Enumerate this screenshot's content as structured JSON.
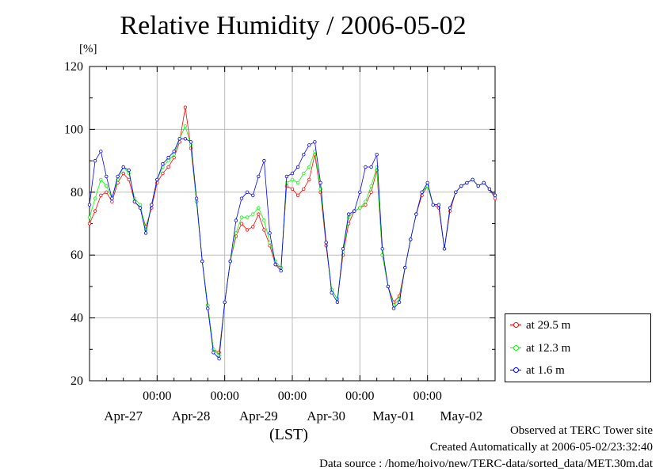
{
  "title": "Relative Humidity / 2006-05-02",
  "y_unit": "[%]",
  "x_unit": "(LST)",
  "footer": {
    "line1": "Observed at TERC Tower site",
    "line2": "Created Automatically at 2006-05-02/23:32:40",
    "line3": "Data source : /home/hoivo/new/TERC-data/sorted_data/MET.30m.dat"
  },
  "legend": {
    "s1": "at 29.5 m",
    "s2": "at 12.3 m",
    "s3": "at 1.6 m"
  },
  "chart_data": {
    "type": "line",
    "title": "Relative Humidity / 2006-05-02",
    "ylabel": "[%]",
    "xlabel": "(LST)",
    "ylim": [
      20,
      120
    ],
    "yticks": [
      20,
      40,
      60,
      80,
      100,
      120
    ],
    "xlim_days": [
      0,
      6
    ],
    "x_time_ticks": [
      "00:00",
      "00:00",
      "00:00",
      "00:00",
      "00:00"
    ],
    "x_date_labels": [
      "Apr-27",
      "Apr-28",
      "Apr-29",
      "Apr-30",
      "May-01",
      "May-02"
    ],
    "grid": true,
    "legend_position": "right-bottom",
    "series": [
      {
        "name": "at 29.5 m",
        "color": "#ff0000",
        "x": [
          0,
          0.083,
          0.167,
          0.25,
          0.333,
          0.417,
          0.5,
          0.583,
          0.667,
          0.75,
          0.833,
          0.917,
          1,
          1.083,
          1.167,
          1.25,
          1.333,
          1.417,
          1.5,
          1.583,
          1.667,
          1.75,
          1.833,
          1.917,
          2,
          2.083,
          2.167,
          2.25,
          2.333,
          2.417,
          2.5,
          2.583,
          2.667,
          2.75,
          2.833,
          2.917,
          3,
          3.083,
          3.167,
          3.25,
          3.333,
          3.417,
          3.5,
          3.583,
          3.667,
          3.75,
          3.833,
          3.917,
          4,
          4.083,
          4.167,
          4.25,
          4.333,
          4.417,
          4.5,
          4.583,
          4.667,
          4.75,
          4.833,
          4.917,
          5,
          5.083,
          5.167,
          5.25,
          5.333,
          5.417,
          5.5,
          5.583,
          5.667,
          5.75,
          5.833,
          5.917,
          6
        ],
        "values": [
          70,
          74,
          79,
          80,
          77,
          83,
          86,
          84,
          77,
          75,
          69,
          75,
          83,
          86,
          88,
          91,
          96,
          107,
          94,
          77,
          58,
          44,
          30,
          29,
          45,
          58,
          66,
          70,
          68,
          69,
          73,
          68,
          63,
          57,
          56,
          82,
          81,
          79,
          81,
          84,
          92,
          80,
          63,
          49,
          46,
          60,
          70,
          74,
          75,
          76,
          80,
          87,
          60,
          50,
          45,
          47,
          56,
          65,
          73,
          79,
          82,
          76,
          75,
          62,
          74,
          80,
          82,
          83,
          84,
          82,
          83,
          81,
          78
        ]
      },
      {
        "name": "at 12.3 m",
        "color": "#00ff00",
        "x": [
          0,
          0.083,
          0.167,
          0.25,
          0.333,
          0.417,
          0.5,
          0.583,
          0.667,
          0.75,
          0.833,
          0.917,
          1,
          1.083,
          1.167,
          1.25,
          1.333,
          1.417,
          1.5,
          1.583,
          1.667,
          1.75,
          1.833,
          1.917,
          2,
          2.083,
          2.167,
          2.25,
          2.333,
          2.417,
          2.5,
          2.583,
          2.667,
          2.75,
          2.833,
          2.917,
          3,
          3.083,
          3.167,
          3.25,
          3.333,
          3.417,
          3.5,
          3.583,
          3.667,
          3.75,
          3.833,
          3.917,
          4,
          4.083,
          4.167,
          4.25,
          4.333,
          4.417,
          4.5,
          4.583,
          4.667,
          4.75,
          4.833,
          4.917,
          5,
          5.083,
          5.167,
          5.25,
          5.333,
          5.417,
          5.5,
          5.583,
          5.667,
          5.75,
          5.833,
          5.917,
          6
        ],
        "values": [
          72,
          78,
          84,
          82,
          78,
          84,
          88,
          86,
          78,
          76,
          68,
          76,
          84,
          88,
          90,
          92,
          97,
          101,
          95,
          77,
          58,
          44,
          30,
          28,
          45,
          58,
          67,
          72,
          72,
          73,
          75,
          71,
          64,
          58,
          56,
          83,
          84,
          83,
          86,
          88,
          93,
          81,
          64,
          49,
          46,
          61,
          72,
          74,
          75,
          77,
          82,
          88,
          60,
          50,
          44,
          46,
          56,
          65,
          73,
          80,
          82,
          76,
          76,
          62,
          75,
          80,
          82,
          83,
          84,
          82,
          83,
          81,
          79
        ]
      },
      {
        "name": "at 1.6 m",
        "color": "#0000ff",
        "x": [
          0,
          0.083,
          0.167,
          0.25,
          0.333,
          0.417,
          0.5,
          0.583,
          0.667,
          0.75,
          0.833,
          0.917,
          1,
          1.083,
          1.167,
          1.25,
          1.333,
          1.417,
          1.5,
          1.583,
          1.667,
          1.75,
          1.833,
          1.917,
          2,
          2.083,
          2.167,
          2.25,
          2.333,
          2.417,
          2.5,
          2.583,
          2.667,
          2.75,
          2.833,
          2.917,
          3,
          3.083,
          3.167,
          3.25,
          3.333,
          3.417,
          3.5,
          3.583,
          3.667,
          3.75,
          3.833,
          3.917,
          4,
          4.083,
          4.167,
          4.25,
          4.333,
          4.417,
          4.5,
          4.583,
          4.667,
          4.75,
          4.833,
          4.917,
          5,
          5.083,
          5.167,
          5.25,
          5.333,
          5.417,
          5.5,
          5.583,
          5.667,
          5.75,
          5.833,
          5.917,
          6
        ],
        "values": [
          76,
          90,
          93,
          85,
          78,
          85,
          88,
          87,
          77,
          75,
          67,
          76,
          84,
          89,
          91,
          93,
          97,
          97,
          96,
          78,
          58,
          43,
          29,
          27,
          45,
          58,
          71,
          78,
          80,
          79,
          85,
          90,
          67,
          57,
          55,
          85,
          86,
          88,
          92,
          95,
          96,
          83,
          64,
          48,
          45,
          62,
          73,
          74,
          80,
          88,
          88,
          92,
          62,
          50,
          43,
          45,
          56,
          65,
          73,
          80,
          83,
          76,
          76,
          62,
          75,
          80,
          82,
          83,
          84,
          82,
          83,
          81,
          79
        ]
      }
    ]
  }
}
